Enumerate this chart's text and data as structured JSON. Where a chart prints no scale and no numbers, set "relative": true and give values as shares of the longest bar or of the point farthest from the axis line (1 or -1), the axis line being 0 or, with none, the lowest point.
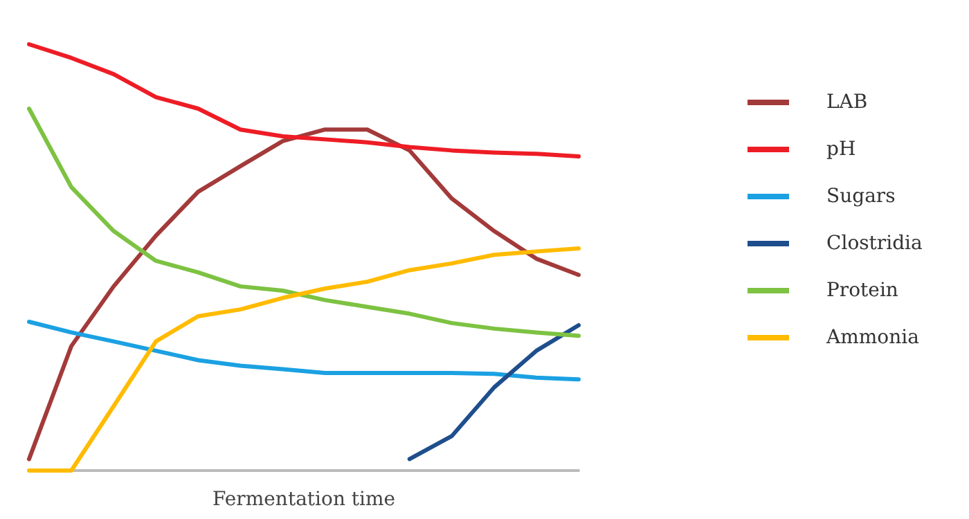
{
  "chart_data": {
    "type": "line",
    "relative": true,
    "xlabel": "Fermentation time",
    "legend": "right",
    "grid": false,
    "marker": "none",
    "line_style": "solid",
    "categories": [
      null,
      null,
      null,
      null,
      null,
      null,
      null,
      null,
      null,
      null,
      null,
      null,
      null,
      null
    ],
    "series": [
      {
        "name": "LAB",
        "color": "#a33a3a",
        "values": [
          0.027,
          0.292,
          0.432,
          0.551,
          0.654,
          0.714,
          0.773,
          0.8,
          0.8,
          0.751,
          0.638,
          0.562,
          0.497,
          0.459
        ]
      },
      {
        "name": "pH",
        "color": "#ee1c25",
        "values": [
          1.0,
          0.968,
          0.93,
          0.876,
          0.849,
          0.8,
          0.784,
          0.777,
          0.77,
          0.759,
          0.751,
          0.746,
          0.743,
          0.737
        ]
      },
      {
        "name": "Sugars",
        "color": "#1ba1e2",
        "values": [
          0.349,
          0.324,
          0.303,
          0.281,
          0.259,
          0.246,
          0.238,
          0.229,
          0.229,
          0.229,
          0.229,
          0.227,
          0.218,
          0.214
        ]
      },
      {
        "name": "Clostridia",
        "color": "#1f4e8c",
        "values": [
          null,
          null,
          null,
          null,
          null,
          null,
          null,
          null,
          null,
          0.027,
          0.081,
          0.195,
          0.281,
          0.341
        ]
      },
      {
        "name": "Protein",
        "color": "#7dc242",
        "values": [
          0.849,
          0.665,
          0.562,
          0.492,
          0.465,
          0.432,
          0.422,
          0.4,
          0.384,
          0.368,
          0.346,
          0.333,
          0.324,
          0.316
        ]
      },
      {
        "name": "Ammonia",
        "color": "#ffbb00",
        "values": [
          0,
          0,
          0.151,
          0.303,
          0.362,
          0.378,
          0.405,
          0.427,
          0.443,
          0.47,
          0.486,
          0.506,
          0.514,
          0.521
        ]
      }
    ]
  }
}
